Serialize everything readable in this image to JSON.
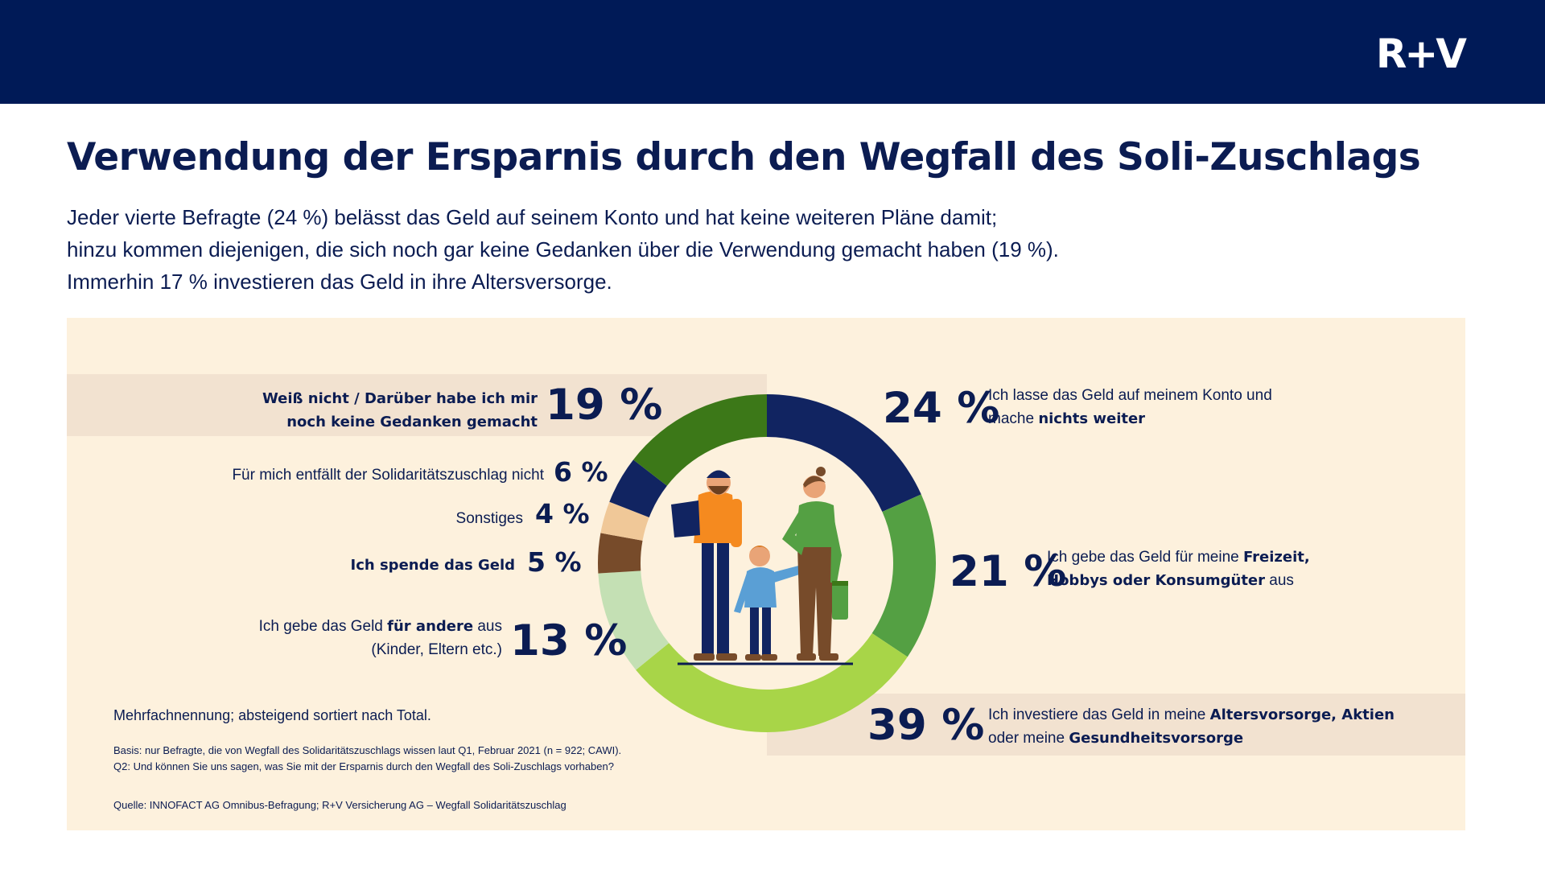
{
  "brand": {
    "logo_text": "R+V",
    "header_color": "#001a57"
  },
  "title": "Verwendung der Ersparnis durch den Wegfall des Soli-Zuschlags",
  "intro": [
    "Jeder vierte Befragte (24 %) belässt das Geld auf seinem Konto und hat keine weiteren Pläne damit;",
    "hinzu kommen diejenigen, die sich noch gar keine Gedanken über die Verwendung gemacht haben (19 %).",
    "Immerhin 17 % investieren das Geld in ihre Altersversorge."
  ],
  "chart_data": {
    "type": "pie",
    "variant": "donut",
    "unit": "%",
    "segments": [
      {
        "label": "Ich lasse das Geld auf meinem Konto und mache nichts weiter",
        "value": 24,
        "color": "#112461"
      },
      {
        "label": "Ich gebe das Geld für meine Freizeit, Hobbys oder Konsumgüter aus",
        "value": 21,
        "color": "#54a043"
      },
      {
        "label": "Ich investiere das Geld in meine Altersvorsorge, Aktien oder meine Gesundheitsvorsorge",
        "value": 39,
        "color": "#a8d548"
      },
      {
        "label": "Ich gebe das Geld für andere aus (Kinder, Eltern etc.)",
        "value": 13,
        "color": "#c4e0b4"
      },
      {
        "label": "Ich spende das Geld",
        "value": 5,
        "color": "#774b2a"
      },
      {
        "label": "Sonstiges",
        "value": 4,
        "color": "#f0c898"
      },
      {
        "label": "Für mich entfällt der Solidaritätszuschlag nicht",
        "value": 6,
        "color": "#112461"
      },
      {
        "label": "Weiß nicht / Darüber habe ich mir noch keine Gedanken gemacht",
        "value": 19,
        "color": "#3c7818"
      }
    ]
  },
  "labels": {
    "s24": {
      "pct": "24 %",
      "l1": "Ich lasse das Geld auf meinem Konto und",
      "l2a": "mache ",
      "l2b": "nichts weiter"
    },
    "s21": {
      "pct": "21 %",
      "l1a": "Ich gebe das Geld für meine ",
      "l1b": "Freizeit,",
      "l2a": "Hobbys oder Konsumgüter",
      "l2b": " aus"
    },
    "s39": {
      "pct": "39 %",
      "l1a": "Ich investiere das Geld in meine ",
      "l1b": "Altersvorsorge, Aktien",
      "l2a": "oder meine ",
      "l2b": "Gesundheitsvorsorge"
    },
    "s19": {
      "pct": "19 %",
      "l1": "Weiß nicht / Darüber habe ich mir",
      "l2": "noch keine Gedanken gemacht"
    },
    "s6": {
      "pct": "6 %",
      "text": "Für mich entfällt der Solidaritätszuschlag nicht"
    },
    "s4": {
      "pct": "4 %",
      "text": "Sonstiges"
    },
    "s5": {
      "pct": "5 %",
      "text": "Ich spende das Geld"
    },
    "s13": {
      "pct": "13 %",
      "l1a": "Ich gebe das Geld ",
      "l1b": "für andere",
      "l1c": " aus",
      "l2": "(Kinder, Eltern etc.)"
    }
  },
  "notes": {
    "main": "Mehrfachnennung; absteigend sortiert nach Total.",
    "basis": "Basis: nur Befragte, die von Wegfall des Solidaritätszuschlags wissen laut Q1, Februar 2021 (n = 922; CAWI).",
    "question": "Q2: Und können Sie uns sagen, was Sie mit der Ersparnis durch den Wegfall des Soli-Zuschlags vorhaben?",
    "source": "Quelle: INNOFACT AG Omnibus-Befragung; R+V Versicherung AG – Wegfall Solidaritätszuschlag"
  }
}
